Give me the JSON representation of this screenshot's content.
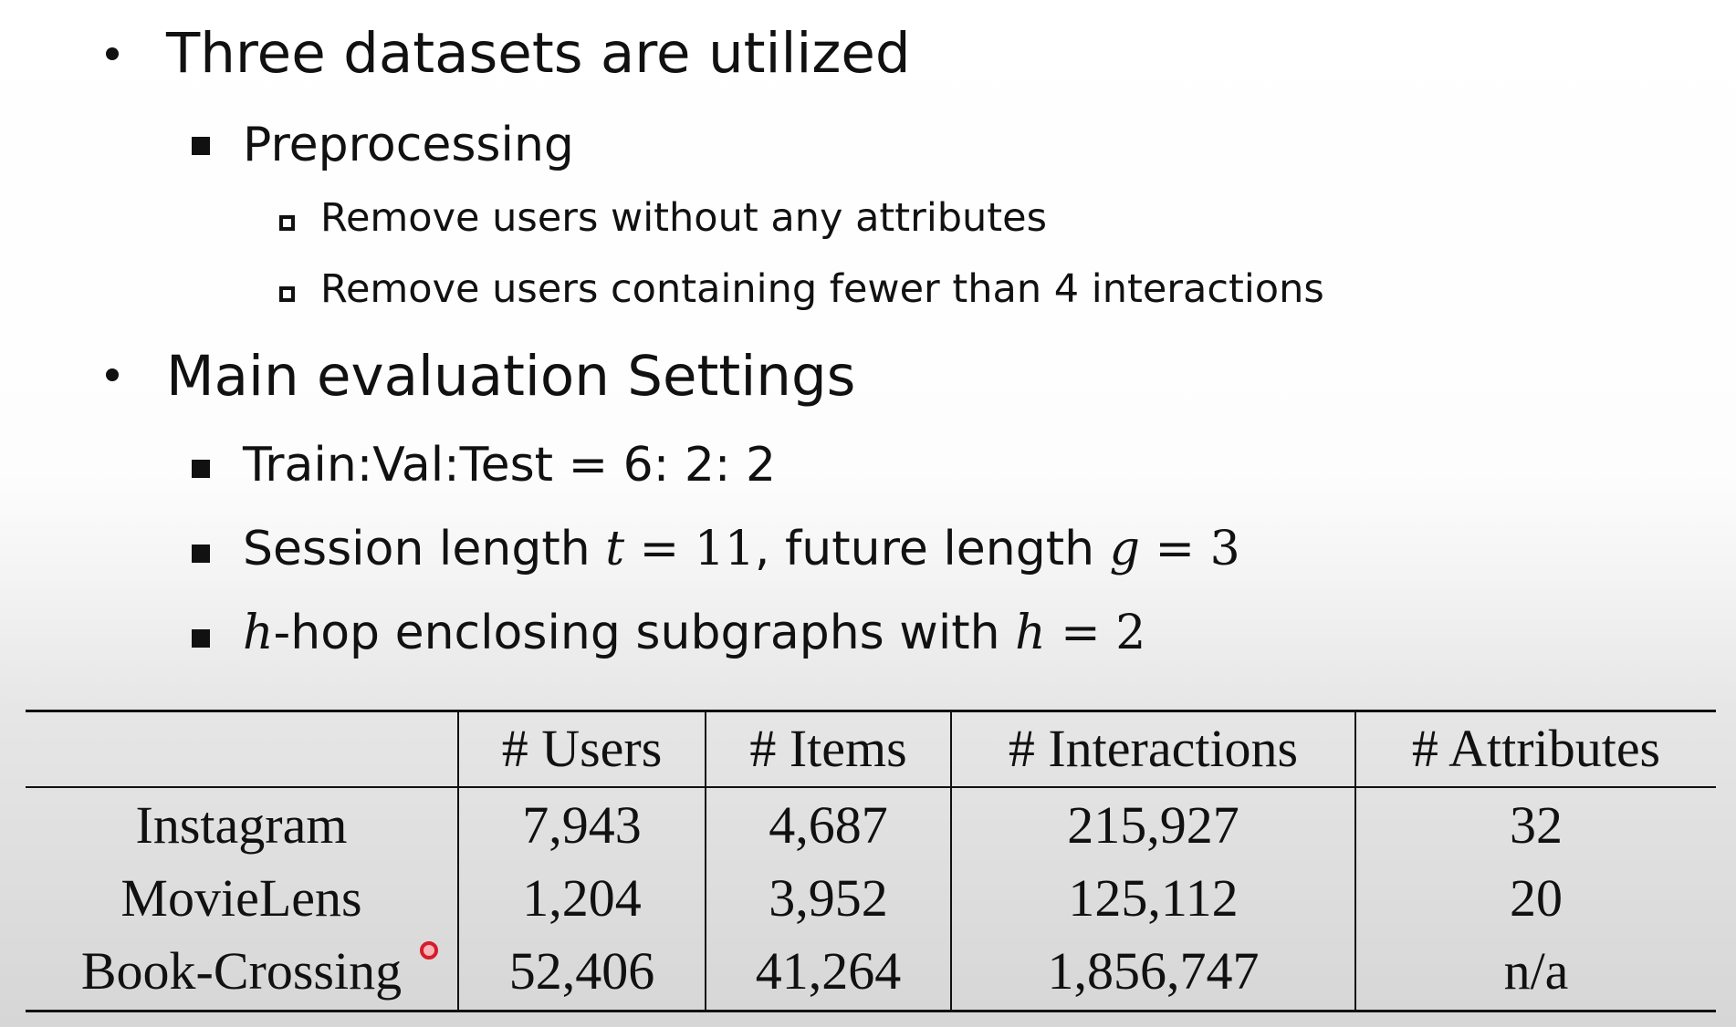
{
  "slide": {
    "bullet1": "Three datasets are utilized",
    "sub1": "Preprocessing",
    "sub1_items": [
      "Remove users without any attributes",
      "Remove users containing fewer than 4 interactions"
    ],
    "bullet2": "Main evaluation Settings",
    "sub2": {
      "split": "Train:Val:Test = 6: 2: 2",
      "session_a": "Session length ",
      "session_t": "t",
      "session_b": " = 11",
      "session_c": ", future length ",
      "session_g": "g",
      "session_d": " = 3",
      "hop_h1": "h",
      "hop_a": "-hop enclosing subgraphs with ",
      "hop_h2": "h",
      "hop_b": " = 2"
    }
  },
  "table": {
    "headers": [
      "",
      "# Users",
      "# Items",
      "# Interactions",
      "# Attributes"
    ],
    "rows": [
      {
        "name": "Instagram",
        "users": "7,943",
        "items": "4,687",
        "interactions": "215,927",
        "attributes": "32"
      },
      {
        "name": "MovieLens",
        "users": "1,204",
        "items": "3,952",
        "interactions": "125,112",
        "attributes": "20"
      },
      {
        "name": "Book-Crossing",
        "users": "52,406",
        "items": "41,264",
        "interactions": "1,856,747",
        "attributes": "n/a"
      }
    ]
  },
  "colors": {
    "text": "#111111",
    "cursor": "#d61c2a"
  }
}
